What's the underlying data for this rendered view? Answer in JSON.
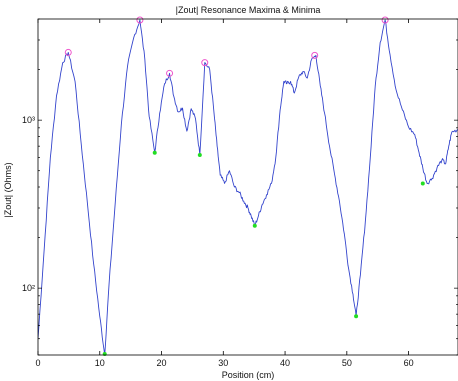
{
  "chart_data": {
    "type": "line",
    "title": "|Zout| Resonance Maxima & Minima",
    "xlabel": "Position (cm)",
    "ylabel": "|Zout| (Ohms)",
    "xlim": [
      0,
      68
    ],
    "ylim": [
      40,
      4000
    ],
    "yscale": "log",
    "grid": false,
    "xticks": [
      "0",
      "10",
      "20",
      "30",
      "40",
      "50",
      "60"
    ],
    "xtick_values": [
      0,
      10,
      20,
      30,
      40,
      50,
      60
    ],
    "yticks": [
      "10²",
      "10³"
    ],
    "ytick_values": [
      100,
      1000
    ],
    "colors": {
      "line": "#3344cc",
      "maxima": "#ee55cc",
      "minima": "#22dd22"
    },
    "series": [
      {
        "x": [
          0,
          1,
          2,
          3,
          4,
          4.9,
          6,
          7,
          8,
          9,
          10,
          10.8,
          11.5,
          12.5,
          13.5,
          14.5,
          15.5,
          16.5,
          17.3,
          18,
          18.9,
          19.7,
          20.5,
          21.3,
          22,
          22.7,
          23.4,
          24.1,
          24.8,
          25.5,
          26.2,
          27,
          27.8,
          28.5,
          29,
          29.5,
          30.2,
          31,
          31.8,
          32.6,
          33.3,
          34,
          34.5,
          35.1,
          35.7,
          36.3,
          37,
          37.8,
          38.5,
          39.2,
          39.8,
          40.3,
          40.9,
          41.5,
          42.2,
          42.9,
          43.6,
          44.3,
          45,
          45.7,
          46.4,
          47.2,
          48,
          48.8,
          49.6,
          50.3,
          51,
          51.5,
          52.2,
          53,
          53.8,
          54.6,
          55.4,
          56.2,
          57,
          58,
          59,
          60,
          61,
          61.7,
          62.3,
          63,
          63.8,
          64.6,
          65.4,
          66,
          66.5,
          67,
          68
        ],
        "y": [
          50,
          170,
          600,
          1400,
          2200,
          2530,
          1700,
          720,
          320,
          140,
          68,
          40,
          105,
          320,
          950,
          2100,
          3100,
          3950,
          2300,
          1050,
          640,
          1100,
          1650,
          1900,
          1380,
          1120,
          1180,
          860,
          1170,
          1020,
          620,
          2200,
          2000,
          1100,
          700,
          470,
          420,
          500,
          400,
          370,
          330,
          300,
          270,
          235,
          270,
          315,
          360,
          420,
          600,
          1150,
          1700,
          1650,
          1700,
          1450,
          1800,
          1950,
          1780,
          2300,
          2430,
          1600,
          1100,
          700,
          480,
          330,
          210,
          130,
          92,
          68,
          120,
          250,
          600,
          1600,
          2900,
          3950,
          2450,
          1500,
          1150,
          910,
          820,
          640,
          520,
          420,
          450,
          520,
          580,
          550,
          700,
          850,
          880
        ]
      }
    ],
    "maxima": {
      "x": [
        4.9,
        16.5,
        21.3,
        27,
        44.8,
        56.2
      ],
      "y": [
        2530,
        3950,
        1900,
        2200,
        2430,
        3950
      ]
    },
    "minima": {
      "x": [
        10.8,
        18.9,
        26.2,
        35.1,
        51.5,
        62.3
      ],
      "y": [
        40,
        640,
        620,
        235,
        68,
        420
      ]
    }
  }
}
